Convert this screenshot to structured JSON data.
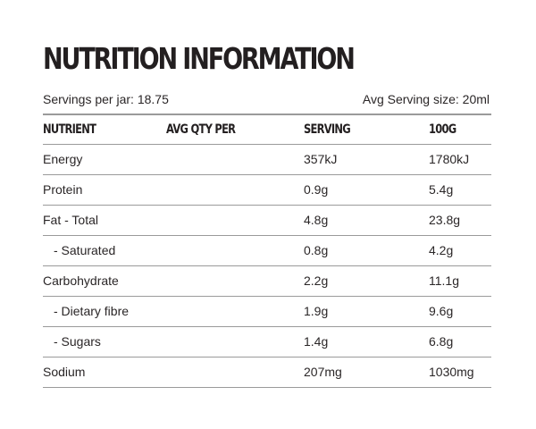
{
  "title": "NUTRITION INFORMATION",
  "servings_per_jar": "Servings per jar: 18.75",
  "serving_size": "Avg Serving size: 20ml",
  "headers": {
    "nutrient": "NUTRIENT",
    "avg_qty": "AVG QTY PER",
    "serving": "SERVING",
    "per100": "100G"
  },
  "rows": [
    {
      "name": "Energy",
      "serving": "357kJ",
      "per100": "1780kJ"
    },
    {
      "name": "Protein",
      "serving": "0.9g",
      "per100": "5.4g"
    },
    {
      "name": "Fat - Total",
      "serving": "4.8g",
      "per100": "23.8g"
    },
    {
      "name": "- Saturated",
      "serving": "0.8g",
      "per100": "4.2g"
    },
    {
      "name": "Carbohydrate",
      "serving": "2.2g",
      "per100": "11.1g"
    },
    {
      "name": "- Dietary fibre",
      "serving": "1.9g",
      "per100": "9.6g"
    },
    {
      "name": "- Sugars",
      "serving": "1.4g",
      "per100": "6.8g"
    },
    {
      "name": "Sodium",
      "serving": "207mg",
      "per100": "1030mg"
    }
  ]
}
